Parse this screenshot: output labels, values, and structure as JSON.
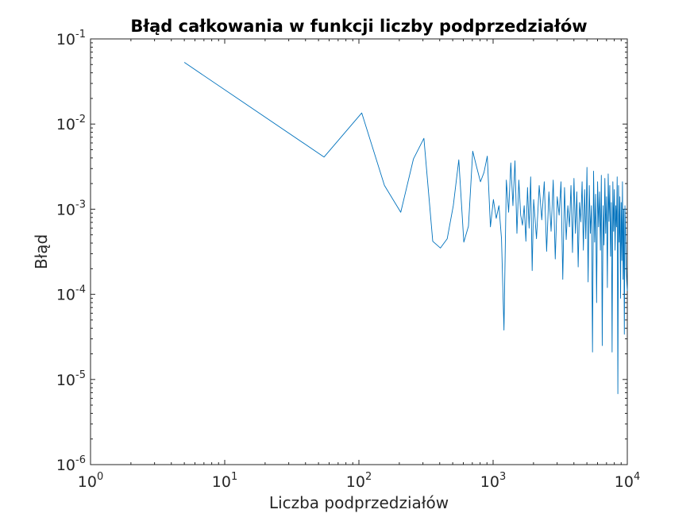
{
  "chart_data": {
    "type": "line",
    "title": "Błąd całkowania w funkcji liczby podprzedziałów",
    "xlabel": "Liczba podprzedziałów",
    "ylabel": "Błąd",
    "xscale": "log",
    "yscale": "log",
    "xlim": [
      1,
      10000
    ],
    "ylim": [
      1e-06,
      0.1
    ],
    "grid": false,
    "x_ticks": [
      {
        "base": "10",
        "exp": "0",
        "value": 1
      },
      {
        "base": "10",
        "exp": "1",
        "value": 10
      },
      {
        "base": "10",
        "exp": "2",
        "value": 100
      },
      {
        "base": "10",
        "exp": "3",
        "value": 1000
      },
      {
        "base": "10",
        "exp": "4",
        "value": 10000
      }
    ],
    "y_ticks": [
      {
        "base": "10",
        "exp": "-1",
        "value": 0.1
      },
      {
        "base": "10",
        "exp": "-2",
        "value": 0.01
      },
      {
        "base": "10",
        "exp": "-3",
        "value": 0.001
      },
      {
        "base": "10",
        "exp": "-4",
        "value": 0.0001
      },
      {
        "base": "10",
        "exp": "-5",
        "value": 1e-05
      },
      {
        "base": "10",
        "exp": "-6",
        "value": 1e-06
      }
    ],
    "series": [
      {
        "color": "#0072BD",
        "x": [
          5,
          55,
          105,
          155,
          205,
          255,
          305,
          355,
          405,
          455,
          505,
          555,
          605,
          655,
          705,
          755,
          805,
          855,
          905,
          955,
          1005,
          1055,
          1105,
          1155,
          1205,
          1255,
          1305,
          1355,
          1405,
          1455,
          1505,
          1555,
          1605,
          1655,
          1705,
          1755,
          1805,
          1855,
          1905,
          1955,
          2005,
          2105,
          2205,
          2305,
          2405,
          2505,
          2605,
          2705,
          2805,
          2905,
          3005,
          3105,
          3205,
          3305,
          3405,
          3505,
          3605,
          3705,
          3805,
          3905,
          4005,
          4105,
          4205,
          4305,
          4405,
          4505,
          4605,
          4705,
          4805,
          4905,
          5005,
          5105,
          5205,
          5305,
          5405,
          5505,
          5605,
          5705,
          5805,
          5905,
          6005,
          6105,
          6205,
          6305,
          6405,
          6505,
          6605,
          6705,
          6805,
          6905,
          7005,
          7105,
          7205,
          7305,
          7405,
          7505,
          7605,
          7705,
          7805,
          7905,
          8005,
          8105,
          8205,
          8305,
          8405,
          8505,
          8605,
          8705,
          8805,
          8905,
          9005,
          9105,
          9205,
          9305,
          9405,
          9505,
          9605,
          9705,
          9805,
          9905,
          9995
        ],
        "y": [
          0.053,
          0.0041,
          0.0135,
          0.0019,
          0.00092,
          0.0039,
          0.0068,
          0.00042,
          0.00035,
          0.00045,
          0.0011,
          0.0038,
          0.00041,
          0.00063,
          0.0048,
          0.0031,
          0.0021,
          0.0027,
          0.0042,
          0.00062,
          0.0013,
          0.00078,
          0.0011,
          0.00045,
          3.8e-05,
          0.0022,
          0.00092,
          0.0035,
          0.0011,
          0.0037,
          0.00052,
          0.0022,
          0.00085,
          0.00065,
          0.0011,
          0.00042,
          0.0018,
          0.0006,
          0.0024,
          0.00019,
          0.0013,
          0.00045,
          0.0019,
          0.00075,
          0.0021,
          0.00032,
          0.0016,
          0.00055,
          0.0022,
          0.00026,
          0.0014,
          0.00085,
          0.0021,
          0.00015,
          0.0018,
          0.00044,
          0.0011,
          0.00062,
          0.0019,
          0.00031,
          0.0023,
          0.00052,
          0.0016,
          0.00021,
          0.0012,
          0.00071,
          0.0021,
          0.00033,
          0.0017,
          0.00045,
          0.0031,
          0.00014,
          0.0019,
          0.00052,
          0.0011,
          2.1e-05,
          0.0028,
          0.00041,
          0.0015,
          8e-05,
          0.0021,
          0.00062,
          0.0016,
          0.00033,
          0.0025,
          2.5e-05,
          0.0011,
          0.00038,
          0.0023,
          0.00052,
          0.0014,
          0.00012,
          0.0026,
          0.00072,
          0.0019,
          0.00028,
          0.0012,
          2.1e-05,
          0.0021,
          0.00055,
          0.0017,
          0.00033,
          0.0011,
          0.00062,
          0.0024,
          6.8e-06,
          0.0019,
          0.00041,
          0.0014,
          9e-05,
          0.0012,
          0.00025,
          0.0021,
          0.00015,
          0.001,
          3.4e-05,
          0.0011,
          0.00052,
          0.00022,
          0.00014,
          0.00011
        ]
      }
    ]
  }
}
